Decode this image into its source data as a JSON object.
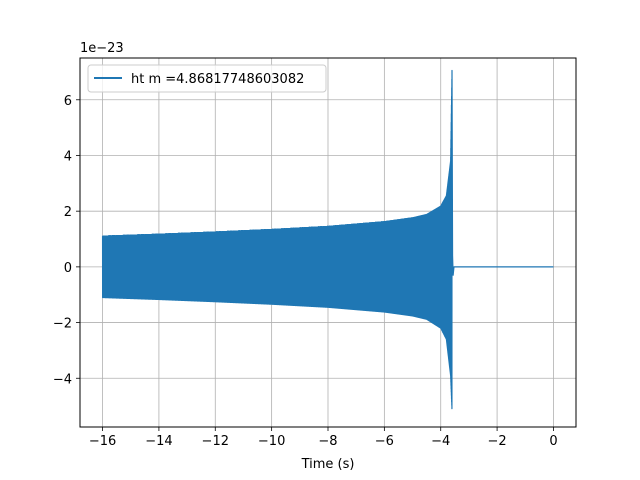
{
  "chart_data": {
    "type": "line",
    "title": "",
    "xlabel": "Time (s)",
    "ylabel": "",
    "y_offset_label": "1e−23",
    "xlim": [
      -16.8,
      0.8
    ],
    "ylim": [
      -5.75,
      7.5
    ],
    "x_ticks": [
      -16,
      -14,
      -12,
      -10,
      -8,
      -6,
      -4,
      -2,
      0
    ],
    "x_tick_labels": [
      "−16",
      "−14",
      "−12",
      "−10",
      "−8",
      "−6",
      "−4",
      "−2",
      "0"
    ],
    "y_ticks": [
      -4,
      -2,
      0,
      2,
      4,
      6
    ],
    "y_tick_labels": [
      "−4",
      "−2",
      "0",
      "2",
      "4",
      "6"
    ],
    "grid": true,
    "legend_position": "top-left",
    "series": [
      {
        "name": "ht m =4.86817748603082",
        "color": "#1f77b4",
        "signal": "chirp",
        "t_start": -16.0,
        "t_merger": -3.6,
        "t_end": 0.0,
        "envelope_start": 1.1,
        "envelope_x": [
          -16,
          -14,
          -12,
          -10,
          -8,
          -6,
          -5,
          -4.5,
          -4,
          -3.8,
          -3.65,
          -3.6
        ],
        "envelope_upper": [
          1.1,
          1.17,
          1.25,
          1.34,
          1.45,
          1.62,
          1.76,
          1.88,
          2.18,
          2.55,
          3.8,
          7.05
        ],
        "envelope_lower": [
          -1.1,
          -1.17,
          -1.25,
          -1.34,
          -1.45,
          -1.62,
          -1.76,
          -1.88,
          -2.2,
          -2.6,
          -3.9,
          -5.15
        ],
        "post_merger_value": 0.0
      }
    ]
  }
}
